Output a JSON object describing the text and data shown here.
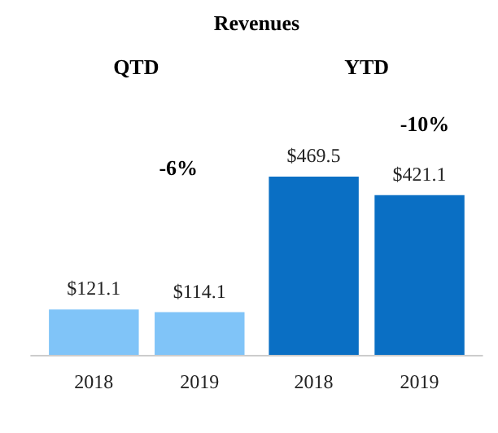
{
  "chart_data": {
    "type": "bar",
    "title": "Revenues",
    "categories": [
      "2018",
      "2019",
      "2018",
      "2019"
    ],
    "values": [
      121.1,
      114.1,
      469.5,
      421.1
    ],
    "colors": [
      "#80c4f8",
      "#80c4f8",
      "#0a6fc4",
      "#0a6fc4"
    ],
    "value_labels": [
      "$121.1",
      "$114.1",
      "$469.5",
      "$421.1"
    ],
    "annotations": [
      "QTD",
      "YTD",
      "-6%",
      "-10%"
    ]
  }
}
